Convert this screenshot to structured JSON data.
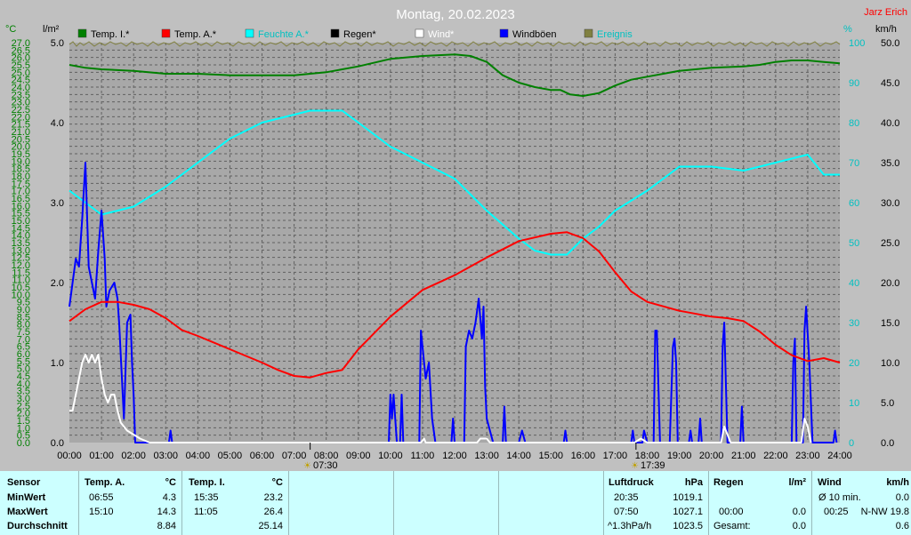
{
  "header": {
    "title": "Montag, 20.02.2023",
    "author": "Jarz Erich"
  },
  "units": {
    "left_temp": "°C",
    "left_rain": "l/m²",
    "right_hum": "%",
    "right_wind": "km/h"
  },
  "legend": [
    {
      "label": "Temp. I.*",
      "color": "#008000",
      "text_color": "#000000"
    },
    {
      "label": "Temp. A.*",
      "color": "#ff0000",
      "text_color": "#000000"
    },
    {
      "label": "Feuchte A.*",
      "color": "#00ffff",
      "text_color": "#00c0c0"
    },
    {
      "label": "Regen*",
      "color": "#000000",
      "text_color": "#000000"
    },
    {
      "label": "Wind*",
      "color": "#ffffff",
      "text_color": "#ffffff"
    },
    {
      "label": "Windböen",
      "color": "#0000ff",
      "text_color": "#000000"
    },
    {
      "label": "Ereignis",
      "color": "#808040",
      "text_color": "#00c0c0"
    }
  ],
  "markers": {
    "sunrise": "07:30",
    "sunset": "17:39"
  },
  "chart_data": {
    "type": "line",
    "x_unit": "hours",
    "xlim": [
      0,
      24
    ],
    "x_ticks": [
      "00:00",
      "01:00",
      "02:00",
      "03:00",
      "04:00",
      "05:00",
      "06:00",
      "07:00",
      "08:00",
      "09:00",
      "10:00",
      "11:00",
      "12:00",
      "13:00",
      "14:00",
      "15:00",
      "16:00",
      "17:00",
      "18:00",
      "19:00",
      "20:00",
      "21:00",
      "22:00",
      "23:00",
      "24:00"
    ],
    "temp_axis": {
      "label": "°C",
      "ylim": [
        0,
        27
      ],
      "step": 0.5,
      "color": "#008000"
    },
    "rain_axis": {
      "label": "l/m²",
      "ylim": [
        0,
        5
      ],
      "ticks": [
        "0.0",
        "1.0",
        "2.0",
        "3.0",
        "4.0",
        "5.0"
      ]
    },
    "hum_axis": {
      "label": "%",
      "ylim": [
        0,
        100
      ],
      "ticks": [
        "0",
        "10",
        "20",
        "30",
        "40",
        "50",
        "60",
        "70",
        "80",
        "90",
        "100"
      ],
      "color": "#00c0c0"
    },
    "wind_axis": {
      "label": "km/h",
      "ylim": [
        0,
        50
      ],
      "ticks": [
        "0.0",
        "5.0",
        "10.0",
        "15.0",
        "20.0",
        "25.0",
        "30.0",
        "35.0",
        "40.0",
        "45.0",
        "50.0"
      ]
    },
    "series": [
      {
        "name": "Temp. I.*",
        "axis": "temp",
        "color": "#008000",
        "points": [
          [
            0,
            25.5
          ],
          [
            0.5,
            25.3
          ],
          [
            1,
            25.2
          ],
          [
            2,
            25.1
          ],
          [
            3,
            24.9
          ],
          [
            4,
            24.9
          ],
          [
            5,
            24.8
          ],
          [
            6,
            24.8
          ],
          [
            7,
            24.8
          ],
          [
            7.5,
            24.9
          ],
          [
            8,
            25.0
          ],
          [
            8.5,
            25.2
          ],
          [
            9,
            25.4
          ],
          [
            10,
            25.9
          ],
          [
            11,
            26.1
          ],
          [
            12,
            26.2
          ],
          [
            12.5,
            26.1
          ],
          [
            13,
            25.7
          ],
          [
            13.5,
            24.8
          ],
          [
            14,
            24.3
          ],
          [
            14.5,
            24.0
          ],
          [
            15,
            23.8
          ],
          [
            15.3,
            23.8
          ],
          [
            15.6,
            23.5
          ],
          [
            16,
            23.4
          ],
          [
            16.5,
            23.6
          ],
          [
            17,
            24.1
          ],
          [
            17.5,
            24.5
          ],
          [
            18,
            24.7
          ],
          [
            19,
            25.1
          ],
          [
            20,
            25.3
          ],
          [
            21,
            25.4
          ],
          [
            21.5,
            25.5
          ],
          [
            22,
            25.7
          ],
          [
            22.5,
            25.8
          ],
          [
            23,
            25.8
          ],
          [
            23.5,
            25.7
          ],
          [
            24,
            25.6
          ]
        ]
      },
      {
        "name": "Temp. A.*",
        "axis": "temp",
        "color": "#ff0000",
        "points": [
          [
            0,
            8.2
          ],
          [
            0.5,
            9.0
          ],
          [
            1,
            9.5
          ],
          [
            1.5,
            9.5
          ],
          [
            2,
            9.3
          ],
          [
            2.5,
            9.0
          ],
          [
            3,
            8.4
          ],
          [
            3.5,
            7.6
          ],
          [
            4,
            7.2
          ],
          [
            5,
            6.3
          ],
          [
            6,
            5.4
          ],
          [
            6.5,
            4.9
          ],
          [
            7,
            4.5
          ],
          [
            7.5,
            4.4
          ],
          [
            8,
            4.7
          ],
          [
            8.5,
            4.9
          ],
          [
            9,
            6.3
          ],
          [
            10,
            8.5
          ],
          [
            11,
            10.3
          ],
          [
            12,
            11.3
          ],
          [
            13,
            12.5
          ],
          [
            14,
            13.6
          ],
          [
            15,
            14.1
          ],
          [
            15.5,
            14.2
          ],
          [
            16,
            13.8
          ],
          [
            16.5,
            12.9
          ],
          [
            17,
            11.5
          ],
          [
            17.5,
            10.2
          ],
          [
            18,
            9.5
          ],
          [
            19,
            8.9
          ],
          [
            20,
            8.5
          ],
          [
            20.5,
            8.4
          ],
          [
            21,
            8.2
          ],
          [
            21.5,
            7.5
          ],
          [
            22,
            6.6
          ],
          [
            22.5,
            5.9
          ],
          [
            23,
            5.5
          ],
          [
            23.5,
            5.7
          ],
          [
            24,
            5.4
          ]
        ]
      },
      {
        "name": "Feuchte A.*",
        "axis": "hum",
        "color": "#00ffff",
        "points": [
          [
            0,
            63
          ],
          [
            0.5,
            60
          ],
          [
            1,
            57
          ],
          [
            2,
            59
          ],
          [
            3,
            64
          ],
          [
            4,
            70
          ],
          [
            5,
            76
          ],
          [
            6,
            80
          ],
          [
            7,
            82
          ],
          [
            7.5,
            83
          ],
          [
            8,
            83
          ],
          [
            8.5,
            83
          ],
          [
            9,
            80
          ],
          [
            10,
            74
          ],
          [
            11,
            70
          ],
          [
            12,
            66
          ],
          [
            13,
            58
          ],
          [
            14,
            51
          ],
          [
            14.5,
            48
          ],
          [
            15,
            47
          ],
          [
            15.5,
            47
          ],
          [
            16,
            51
          ],
          [
            16.5,
            54
          ],
          [
            17,
            58
          ],
          [
            18,
            63
          ],
          [
            19,
            69
          ],
          [
            20,
            69
          ],
          [
            21,
            68
          ],
          [
            22,
            70
          ],
          [
            23,
            72
          ],
          [
            23.5,
            67
          ],
          [
            24,
            67
          ]
        ]
      },
      {
        "name": "Windböen",
        "axis": "wind",
        "color": "#0000ff",
        "points": [
          [
            0,
            17
          ],
          [
            0.1,
            20
          ],
          [
            0.2,
            23
          ],
          [
            0.3,
            22
          ],
          [
            0.4,
            28
          ],
          [
            0.5,
            35
          ],
          [
            0.6,
            22
          ],
          [
            0.7,
            20
          ],
          [
            0.8,
            18
          ],
          [
            0.9,
            24
          ],
          [
            1.0,
            29
          ],
          [
            1.1,
            23
          ],
          [
            1.15,
            17
          ],
          [
            1.25,
            19
          ],
          [
            1.4,
            20
          ],
          [
            1.5,
            18
          ],
          [
            1.55,
            15
          ],
          [
            1.7,
            3
          ],
          [
            1.8,
            15
          ],
          [
            1.9,
            16
          ],
          [
            1.95,
            10
          ],
          [
            2.0,
            6
          ],
          [
            2.05,
            0
          ],
          [
            2.1,
            0
          ],
          [
            3.1,
            0
          ],
          [
            3.15,
            1.5
          ],
          [
            3.2,
            0
          ],
          [
            9.95,
            0
          ],
          [
            10.0,
            6
          ],
          [
            10.05,
            3
          ],
          [
            10.1,
            6
          ],
          [
            10.2,
            0
          ],
          [
            10.3,
            0
          ],
          [
            10.35,
            6
          ],
          [
            10.4,
            0
          ],
          [
            10.9,
            0
          ],
          [
            10.95,
            14
          ],
          [
            11.0,
            12
          ],
          [
            11.1,
            8
          ],
          [
            11.2,
            10
          ],
          [
            11.3,
            3
          ],
          [
            11.4,
            0
          ],
          [
            11.9,
            0
          ],
          [
            11.95,
            3
          ],
          [
            12.0,
            0
          ],
          [
            12.3,
            0
          ],
          [
            12.35,
            12
          ],
          [
            12.45,
            14
          ],
          [
            12.55,
            13
          ],
          [
            12.65,
            15
          ],
          [
            12.75,
            18
          ],
          [
            12.85,
            13
          ],
          [
            12.9,
            17
          ],
          [
            12.95,
            7
          ],
          [
            13.0,
            3
          ],
          [
            13.2,
            0
          ],
          [
            13.5,
            0
          ],
          [
            13.55,
            4.5
          ],
          [
            13.6,
            0
          ],
          [
            14.0,
            0
          ],
          [
            14.1,
            1.5
          ],
          [
            14.2,
            0
          ],
          [
            15.4,
            0
          ],
          [
            15.45,
            1.5
          ],
          [
            15.5,
            0
          ],
          [
            17.5,
            0
          ],
          [
            17.55,
            1.5
          ],
          [
            17.6,
            0
          ],
          [
            17.85,
            0
          ],
          [
            17.9,
            1.5
          ],
          [
            18.0,
            0
          ],
          [
            18.2,
            0
          ],
          [
            18.25,
            14
          ],
          [
            18.3,
            14
          ],
          [
            18.4,
            0
          ],
          [
            18.7,
            0
          ],
          [
            18.8,
            12
          ],
          [
            18.85,
            13
          ],
          [
            18.9,
            10
          ],
          [
            18.95,
            0
          ],
          [
            19.3,
            0
          ],
          [
            19.35,
            1.5
          ],
          [
            19.4,
            0
          ],
          [
            19.6,
            0
          ],
          [
            19.65,
            3
          ],
          [
            19.7,
            0
          ],
          [
            20.3,
            0
          ],
          [
            20.35,
            12
          ],
          [
            20.4,
            15
          ],
          [
            20.5,
            0
          ],
          [
            20.9,
            0
          ],
          [
            20.95,
            4.5
          ],
          [
            21.0,
            0
          ],
          [
            22.5,
            0
          ],
          [
            22.55,
            10
          ],
          [
            22.6,
            13
          ],
          [
            22.65,
            0
          ],
          [
            22.85,
            0
          ],
          [
            22.9,
            14
          ],
          [
            22.95,
            17
          ],
          [
            23.05,
            10
          ],
          [
            23.15,
            0
          ],
          [
            23.8,
            0
          ],
          [
            23.85,
            1.5
          ],
          [
            23.9,
            0
          ]
        ]
      },
      {
        "name": "Wind*",
        "axis": "wind",
        "color": "#ffffff",
        "points": [
          [
            0,
            4
          ],
          [
            0.1,
            4
          ],
          [
            0.2,
            6
          ],
          [
            0.3,
            8
          ],
          [
            0.4,
            10
          ],
          [
            0.5,
            11
          ],
          [
            0.6,
            10
          ],
          [
            0.7,
            11
          ],
          [
            0.8,
            10
          ],
          [
            0.9,
            11
          ],
          [
            1.0,
            8
          ],
          [
            1.1,
            6
          ],
          [
            1.2,
            5
          ],
          [
            1.3,
            6
          ],
          [
            1.4,
            6
          ],
          [
            1.5,
            4
          ],
          [
            1.6,
            2.5
          ],
          [
            1.8,
            1.5
          ],
          [
            2.0,
            1
          ],
          [
            2.2,
            0.5
          ],
          [
            2.5,
            0
          ],
          [
            10.95,
            0
          ],
          [
            11.05,
            0.5
          ],
          [
            11.1,
            0
          ],
          [
            12.7,
            0
          ],
          [
            12.8,
            0.5
          ],
          [
            13.0,
            0.5
          ],
          [
            13.1,
            0
          ],
          [
            17.6,
            0
          ],
          [
            17.8,
            0.5
          ],
          [
            18.0,
            0
          ],
          [
            20.3,
            0
          ],
          [
            20.4,
            2
          ],
          [
            20.5,
            1
          ],
          [
            20.6,
            0
          ],
          [
            22.8,
            0
          ],
          [
            22.9,
            3
          ],
          [
            23.0,
            2
          ],
          [
            23.1,
            0
          ]
        ]
      }
    ]
  },
  "footer": {
    "sensor": {
      "title": "Sensor",
      "rows": [
        "MinWert",
        "MaxWert",
        "Durchschnitt"
      ]
    },
    "temp_a": {
      "title": "Temp. A.",
      "unit": "°C",
      "min_time": "06:55",
      "min_val": "4.3",
      "max_time": "15:10",
      "max_val": "14.3",
      "avg_val": "8.84"
    },
    "temp_i": {
      "title": "Temp. I.",
      "unit": "°C",
      "min_time": "15:35",
      "min_val": "23.2",
      "max_time": "11:05",
      "max_val": "26.4",
      "avg_val": "25.14"
    },
    "pressure": {
      "title": "Luftdruck",
      "unit": "hPa",
      "min_time": "20:35",
      "min_val": "1019.1",
      "max_time": "07:50",
      "max_val": "1027.1",
      "trend": "^1.3hPa/h",
      "current": "1023.5"
    },
    "rain": {
      "title": "Regen",
      "unit": "l/m²",
      "max_time": "00:00",
      "max_val": "0.0",
      "total_label": "Gesamt:",
      "total_val": "0.0"
    },
    "wind": {
      "title": "Wind",
      "unit": "km/h",
      "avg_label": "Ø 10 min.",
      "avg_val": "0.0",
      "max_time": "00:25",
      "max_dir": "N-NW 19.8",
      "last_val": "0.6"
    }
  }
}
